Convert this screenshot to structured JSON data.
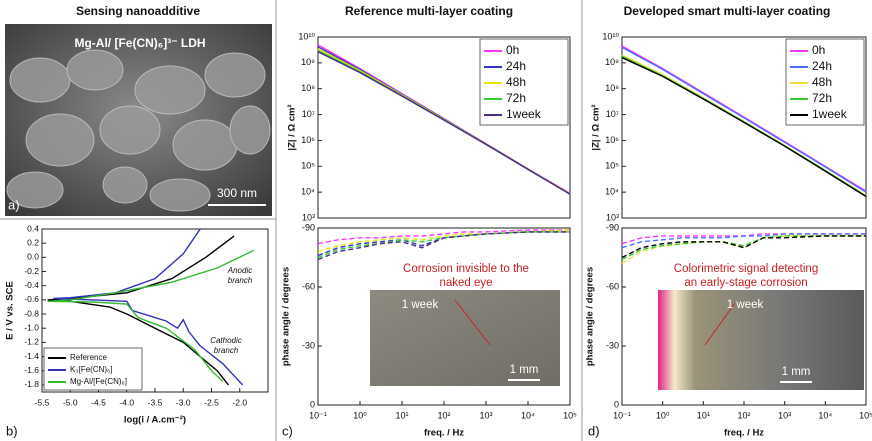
{
  "panel_a": {
    "title": "Sensing nanoadditive",
    "subtitle": "Mg-Al/ [Fe(CN)₆]³⁻ LDH",
    "scale_bar": "300 nm",
    "label": "a)"
  },
  "chart_data": [
    {
      "type": "line",
      "label": "b)",
      "xlabel": "log(i / A.cm⁻²)",
      "ylabel": "E / V vs. SCE",
      "xlim": [
        -5.5,
        -1.5
      ],
      "ylim": [
        -1.9,
        0.4
      ],
      "xticks": [
        -5.5,
        {
          "value": -5,
          "label": "-5.0"
        },
        -4.5,
        {
          "value": -4,
          "label": "-4.0"
        },
        -3.5,
        {
          "value": -3,
          "label": "-3.0"
        },
        -2.5,
        {
          "value": -2,
          "label": "-2.0"
        }
      ],
      "yticks": [
        0.4,
        0.2,
        {
          "value": 0,
          "label": "0.0"
        },
        -0.2,
        -0.4,
        -0.6,
        -0.8,
        {
          "value": -1,
          "label": "-1.0"
        },
        -1.2,
        -1.4,
        -1.6,
        -1.8
      ],
      "legend": "lower left",
      "line_style": "solid",
      "annotations": [
        [
          "Anodic",
          "branch"
        ],
        [
          "Cathodic",
          "branch"
        ]
      ],
      "series": [
        {
          "name": "Reference",
          "color": "#000000",
          "x": [
            -2.1,
            -2.6,
            -3.2,
            -4.0,
            -5.0,
            -5.4,
            -5.0,
            -4.3,
            -4.0,
            -3.5,
            -3.0,
            -2.7,
            -2.4,
            -2.2
          ],
          "values": [
            0.3,
            0.0,
            -0.3,
            -0.5,
            -0.58,
            -0.6,
            -0.62,
            -0.7,
            -0.8,
            -1.0,
            -1.2,
            -1.4,
            -1.6,
            -1.8
          ]
        },
        {
          "name": "K₃[Fe(CN)₆]",
          "color": "#3333bb",
          "x": [
            -2.7,
            -3.0,
            -3.5,
            -4.2,
            -5.0,
            -5.3,
            -4.6,
            -4.0,
            -3.9,
            -3.5,
            -3.3,
            -3.1,
            -3.0,
            -2.9,
            -2.7,
            -2.3,
            -1.95
          ],
          "values": [
            0.4,
            0.05,
            -0.3,
            -0.5,
            -0.57,
            -0.58,
            -0.6,
            -0.62,
            -0.75,
            -0.85,
            -0.9,
            -1.0,
            -0.88,
            -1.05,
            -1.25,
            -1.5,
            -1.8
          ]
        },
        {
          "name": "Mg-Al/[Fe(CN)₆]",
          "color": "#33bb33",
          "x": [
            -1.75,
            -2.4,
            -3.2,
            -4.2,
            -5.0,
            -5.4,
            -4.6,
            -4.0,
            -3.8,
            -3.3,
            -2.8,
            -2.5,
            -2.3
          ],
          "values": [
            0.1,
            -0.15,
            -0.35,
            -0.5,
            -0.6,
            -0.62,
            -0.63,
            -0.66,
            -0.85,
            -1.0,
            -1.3,
            -1.6,
            -1.75
          ]
        }
      ]
    },
    {
      "type": "line",
      "title": "Reference  multi-layer coating",
      "ylabel": "|Z| / Ω cm²",
      "ylog": true,
      "xlog": true,
      "xlim": [
        0.1,
        100000
      ],
      "ylim": [
        1000,
        10000000000
      ],
      "yticks": [
        {
          "value": 1000,
          "label": "10³"
        },
        {
          "value": 10000,
          "label": "10⁴"
        },
        {
          "value": 100000,
          "label": "10⁵"
        },
        {
          "value": 1000000,
          "label": "10⁶"
        },
        {
          "value": 10000000,
          "label": "10⁷"
        },
        {
          "value": 100000000,
          "label": "10⁸"
        },
        {
          "value": 1000000000,
          "label": "10⁹"
        },
        {
          "value": 10000000000,
          "label": "10¹⁰"
        }
      ],
      "legend": "upper right",
      "line_style": "solid",
      "x": [
        0.1,
        1,
        10,
        100,
        1000,
        10000,
        100000
      ],
      "series": [
        {
          "name": "0h",
          "color": "#ff33ff",
          "values": [
            5000000000,
            600000000,
            65000000,
            7000000,
            750000,
            80000,
            9000
          ]
        },
        {
          "name": "24h",
          "color": "#3333cc",
          "values": [
            4200000000,
            550000000,
            60000000,
            6800000,
            730000,
            78000,
            8500
          ]
        },
        {
          "name": "48h",
          "color": "#e6e600",
          "values": [
            3500000000,
            500000000,
            58000000,
            6500000,
            720000,
            78000,
            8500
          ]
        },
        {
          "name": "72h",
          "color": "#33cc33",
          "values": [
            3000000000,
            450000000,
            55000000,
            6300000,
            700000,
            76000,
            8300
          ]
        },
        {
          "name": "1week",
          "color": "#4b2a8a",
          "values": [
            2700000000,
            420000000,
            52000000,
            6100000,
            700000,
            76000,
            8300
          ]
        }
      ]
    },
    {
      "type": "line",
      "label": "c)",
      "xlabel": "freq. / Hz",
      "ylabel": "phase angle / degrees",
      "xlog": true,
      "xlim": [
        0.1,
        100000
      ],
      "ylim": [
        0,
        -90
      ],
      "xticks": [
        {
          "value": 0.1,
          "label": "10⁻¹"
        },
        {
          "value": 1,
          "label": "10⁰"
        },
        {
          "value": 10,
          "label": "10¹"
        },
        {
          "value": 100,
          "label": "10²"
        },
        {
          "value": 1000,
          "label": "10³"
        },
        {
          "value": 10000,
          "label": "10⁴"
        },
        {
          "value": 100000,
          "label": "10⁵"
        }
      ],
      "yticks": [
        -90,
        -60,
        -30,
        0
      ],
      "line_style": "dashed",
      "x": [
        0.1,
        0.3,
        1,
        3,
        10,
        30,
        100,
        300,
        1000,
        10000,
        100000
      ],
      "inset": {
        "caption": [
          "Corrosion invisible to the",
          "naked eye"
        ],
        "time": "1 week",
        "scale_bar": "1 mm"
      },
      "series": [
        {
          "name": "0h",
          "color": "#ff33ff",
          "values": [
            -82,
            -84,
            -85,
            -85,
            -86,
            -86,
            -87,
            -88,
            -88,
            -89,
            -89
          ]
        },
        {
          "name": "24h",
          "color": "#3333cc",
          "values": [
            -76,
            -80,
            -82,
            -83,
            -84,
            -81,
            -85,
            -86,
            -87,
            -88,
            -88
          ]
        },
        {
          "name": "48h",
          "color": "#e6e600",
          "values": [
            -78,
            -81,
            -83,
            -84,
            -85,
            -84,
            -86,
            -87,
            -87,
            -88,
            -89
          ]
        },
        {
          "name": "72h",
          "color": "#33cc33",
          "values": [
            -75,
            -79,
            -81,
            -82,
            -84,
            -83,
            -85,
            -86,
            -87,
            -88,
            -88
          ]
        },
        {
          "name": "1week",
          "color": "#4b2a8a",
          "values": [
            -74,
            -78,
            -80,
            -82,
            -83,
            -80,
            -85,
            -86,
            -87,
            -88,
            -88
          ]
        }
      ]
    },
    {
      "type": "line",
      "title": "Developed smart multi-layer coating",
      "ylabel": "|Z| / Ω cm²",
      "ylog": true,
      "xlog": true,
      "xlim": [
        0.1,
        100000
      ],
      "ylim": [
        1000,
        10000000000
      ],
      "yticks": [
        {
          "value": 1000,
          "label": "10³"
        },
        {
          "value": 10000,
          "label": "10⁴"
        },
        {
          "value": 100000,
          "label": "10⁵"
        },
        {
          "value": 1000000,
          "label": "10⁶"
        },
        {
          "value": 10000000,
          "label": "10⁷"
        },
        {
          "value": 100000000,
          "label": "10⁸"
        },
        {
          "value": 1000000000,
          "label": "10⁹"
        },
        {
          "value": 10000000000,
          "label": "10¹⁰"
        }
      ],
      "legend": "upper right",
      "line_style": "solid",
      "x": [
        0.1,
        1,
        10,
        100,
        1000,
        10000,
        100000
      ],
      "series": [
        {
          "name": "0h",
          "color": "#ff33ff",
          "values": [
            4500000000,
            600000000,
            70000000,
            8000000,
            900000,
            100000,
            11000
          ]
        },
        {
          "name": "24h",
          "color": "#4b6bff",
          "values": [
            4000000000,
            560000000,
            65000000,
            7500000,
            850000,
            95000,
            10000
          ]
        },
        {
          "name": "48h",
          "color": "#f0e040",
          "values": [
            2000000000,
            350000000,
            45000000,
            5500000,
            650000,
            70000,
            7500
          ]
        },
        {
          "name": "72h",
          "color": "#33cc33",
          "values": [
            1800000000,
            320000000,
            42000000,
            5200000,
            620000,
            68000,
            7000
          ]
        },
        {
          "name": "1week",
          "color": "#000000",
          "values": [
            1600000000,
            300000000,
            40000000,
            5000000,
            600000,
            65000,
            6800
          ]
        }
      ]
    },
    {
      "type": "line",
      "label": "d)",
      "xlabel": "freq. / Hz",
      "ylabel": "phase angle / degrees",
      "xlog": true,
      "xlim": [
        0.1,
        100000
      ],
      "ylim": [
        0,
        -90
      ],
      "xticks": [
        {
          "value": 0.1,
          "label": "10⁻¹"
        },
        {
          "value": 1,
          "label": "10⁰"
        },
        {
          "value": 10,
          "label": "10¹"
        },
        {
          "value": 100,
          "label": "10²"
        },
        {
          "value": 1000,
          "label": "10³"
        },
        {
          "value": 10000,
          "label": "10⁴"
        },
        {
          "value": 100000,
          "label": "10⁵"
        }
      ],
      "yticks": [
        -90,
        -60,
        -30,
        0
      ],
      "line_style": "dashed",
      "x": [
        0.1,
        0.3,
        1,
        3,
        10,
        30,
        100,
        300,
        1000,
        10000,
        100000
      ],
      "inset": {
        "caption": [
          "Colorimetric signal detecting",
          "an early-stage corrosion"
        ],
        "time": "1 week",
        "scale_bar": "1 mm"
      },
      "series": [
        {
          "name": "0h",
          "color": "#ff33ff",
          "values": [
            -82,
            -85,
            -86,
            -86,
            -86,
            -86,
            -86,
            -87,
            -87,
            -87,
            -87
          ]
        },
        {
          "name": "24h",
          "color": "#4b6bff",
          "values": [
            -80,
            -83,
            -84,
            -85,
            -85,
            -85,
            -86,
            -86,
            -87,
            -87,
            -87
          ]
        },
        {
          "name": "48h",
          "color": "#f0e040",
          "values": [
            -72,
            -78,
            -81,
            -82,
            -83,
            -83,
            -80,
            -85,
            -86,
            -86,
            -86
          ]
        },
        {
          "name": "72h",
          "color": "#33cc33",
          "values": [
            -74,
            -79,
            -81,
            -82,
            -83,
            -83,
            -81,
            -85,
            -86,
            -86,
            -86
          ]
        },
        {
          "name": "1week",
          "color": "#000000",
          "values": [
            -75,
            -80,
            -82,
            -83,
            -83,
            -83,
            -80,
            -85,
            -85,
            -86,
            -86
          ]
        }
      ]
    }
  ]
}
